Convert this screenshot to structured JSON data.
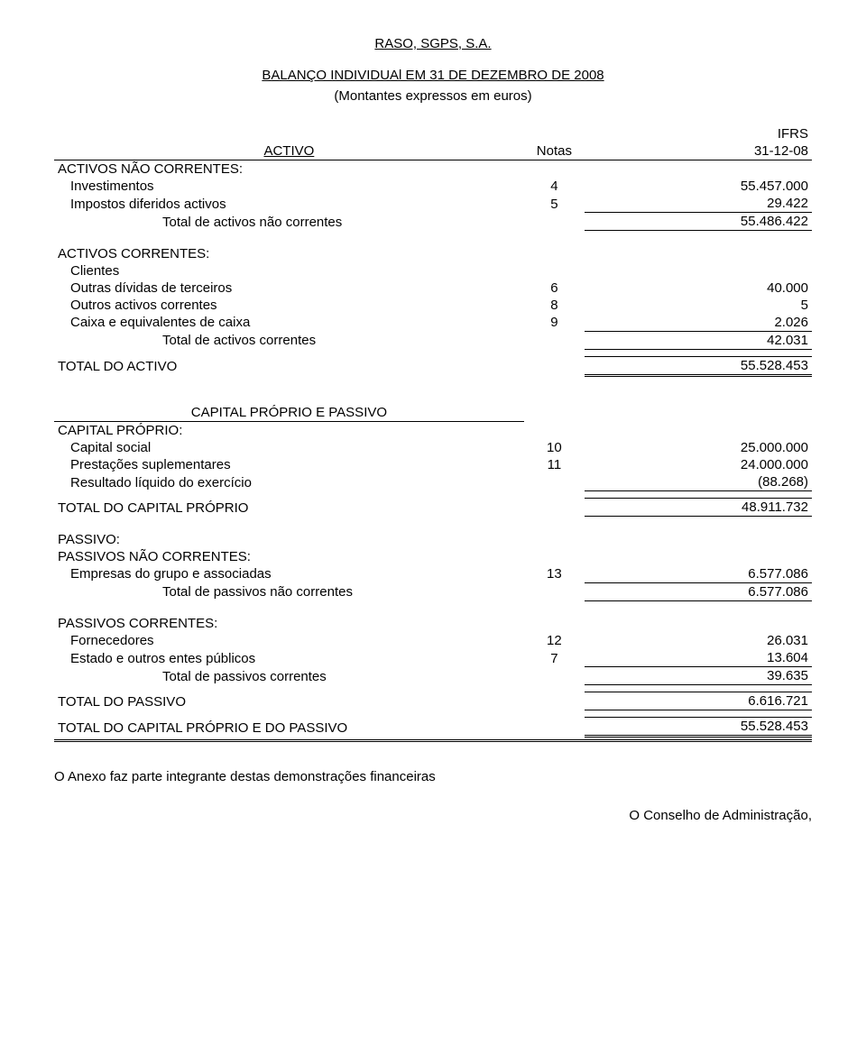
{
  "company": "RASO, SGPS, S.A.",
  "statement_title": "BALANÇO INDIVIDUAl EM 31 DE DEZEMBRO DE 2008",
  "units_note": "(Montantes expressos em euros)",
  "headers": {
    "activo": "ACTIVO",
    "notas": "Notas",
    "ifrs": "IFRS",
    "date": "31-12-08",
    "capital_passivo": "CAPITAL PRÓPRIO E PASSIVO"
  },
  "sections": {
    "anc_title": "ACTIVOS NÃO CORRENTES:",
    "anc_rows": [
      {
        "label": "Investimentos",
        "note": "4",
        "val": "55.457.000"
      },
      {
        "label": "Impostos diferidos activos",
        "note": "5",
        "val": "29.422"
      }
    ],
    "anc_total": {
      "label": "Total de activos não correntes",
      "val": "55.486.422"
    },
    "ac_title": "ACTIVOS CORRENTES:",
    "ac_clientes": "Clientes",
    "ac_rows": [
      {
        "label": "Outras dívidas de terceiros",
        "note": "6",
        "val": "40.000"
      },
      {
        "label": "Outros activos correntes",
        "note": "8",
        "val": "5"
      },
      {
        "label": "Caixa e equivalentes de caixa",
        "note": "9",
        "val": "2.026"
      }
    ],
    "ac_total": {
      "label": "Total de activos correntes",
      "val": "42.031"
    },
    "total_activo": {
      "label": "TOTAL DO ACTIVO",
      "val": "55.528.453"
    },
    "cp_title": "CAPITAL PRÓPRIO:",
    "cp_rows": [
      {
        "label": "Capital social",
        "note": "10",
        "val": "25.000.000"
      },
      {
        "label": "Prestações suplementares",
        "note": "11",
        "val": "24.000.000"
      },
      {
        "label": "Resultado líquido do exercício",
        "note": "",
        "val": "(88.268)"
      }
    ],
    "total_cp": {
      "label": "TOTAL DO CAPITAL PRÓPRIO",
      "val": "48.911.732"
    },
    "passivo_title": "PASSIVO:",
    "pnc_title": "PASSIVOS NÃO CORRENTES:",
    "pnc_rows": [
      {
        "label": "Empresas do grupo e associadas",
        "note": "13",
        "val": "6.577.086"
      }
    ],
    "pnc_total": {
      "label": "Total de passivos não correntes",
      "val": "6.577.086"
    },
    "pc_title": "PASSIVOS CORRENTES:",
    "pc_rows": [
      {
        "label": "Fornecedores",
        "note": "12",
        "val": "26.031"
      },
      {
        "label": "Estado e outros entes públicos",
        "note": "7",
        "val": "13.604"
      }
    ],
    "pc_total": {
      "label": "Total de passivos correntes",
      "val": "39.635"
    },
    "total_passivo": {
      "label": "TOTAL DO PASSIVO",
      "val": "6.616.721"
    },
    "total_cp_passivo": {
      "label": "TOTAL DO CAPITAL PRÓPRIO E DO PASSIVO",
      "val": "55.528.453"
    }
  },
  "footer_note": "O Anexo faz parte integrante destas demonstrações financeiras",
  "footer_sign": "O Conselho de Administração,"
}
